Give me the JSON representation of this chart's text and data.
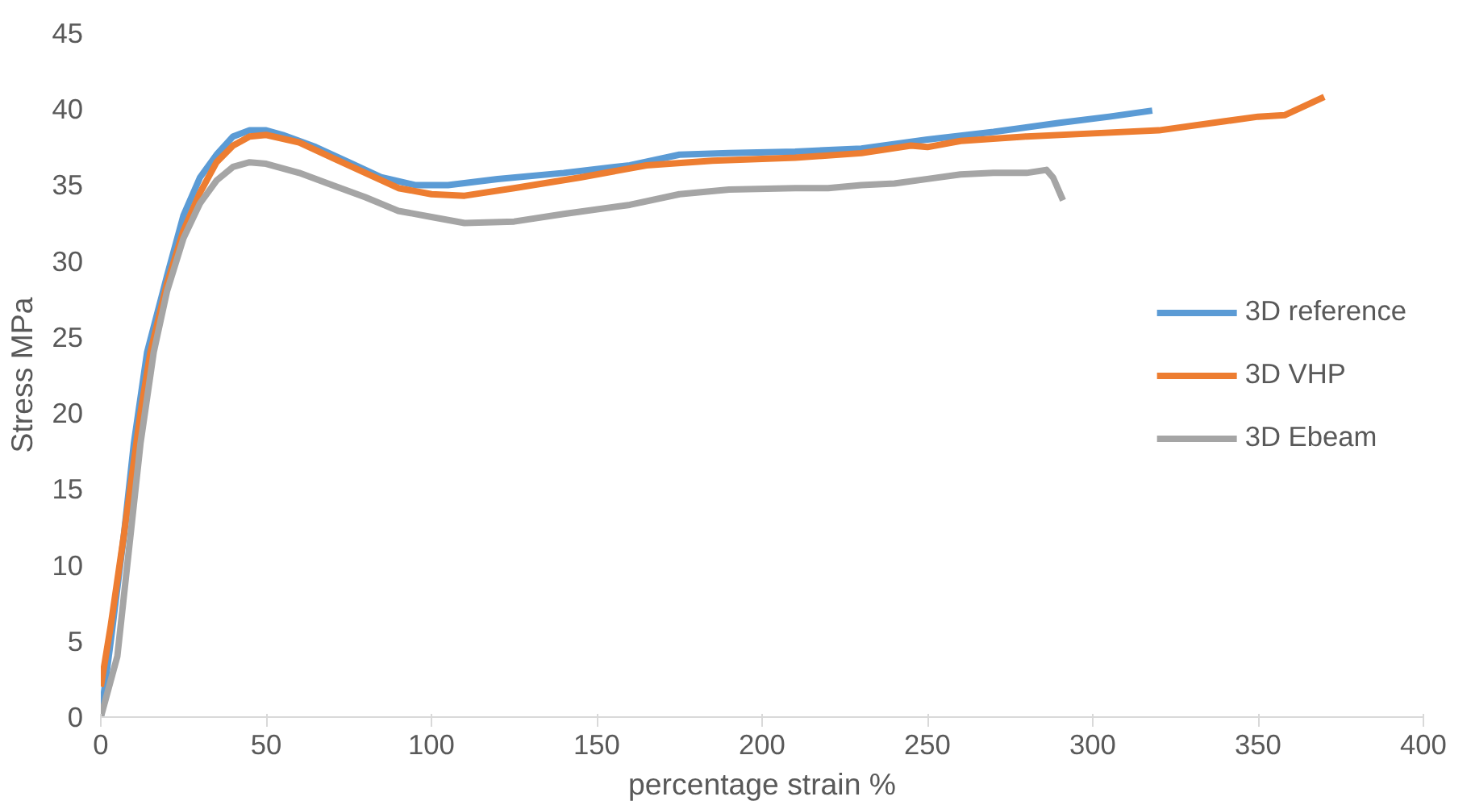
{
  "chart_data": {
    "type": "line",
    "xlabel": "percentage strain %",
    "ylabel": "Stress MPa",
    "xlim": [
      0,
      400
    ],
    "xticks": [
      0,
      50,
      100,
      150,
      200,
      250,
      300,
      350,
      400
    ],
    "ylim": [
      0,
      45
    ],
    "yticks": [
      0,
      5,
      10,
      15,
      20,
      25,
      30,
      35,
      40,
      45
    ],
    "grid": false,
    "legend": "right",
    "line_style": "solid",
    "series": [
      {
        "name": "3D reference",
        "color": "#5b9bd5",
        "x": [
          0,
          3,
          7,
          10,
          14,
          20,
          25,
          30,
          35,
          40,
          45,
          50,
          55,
          65,
          75,
          85,
          95,
          105,
          120,
          140,
          160,
          175,
          190,
          210,
          230,
          250,
          270,
          290,
          305,
          318
        ],
        "values": [
          0,
          5,
          12,
          18,
          24,
          29,
          33,
          35.5,
          37,
          38.2,
          38.6,
          38.6,
          38.3,
          37.5,
          36.5,
          35.5,
          35,
          35,
          35.4,
          35.8,
          36.3,
          37,
          37.1,
          37.2,
          37.4,
          38,
          38.5,
          39.1,
          39.5,
          39.9
        ]
      },
      {
        "name": "3D VHP",
        "color": "#ed7d31",
        "x": [
          0,
          3,
          7,
          12,
          15,
          20,
          25,
          30,
          35,
          40,
          45,
          50,
          60,
          70,
          80,
          90,
          100,
          110,
          125,
          145,
          165,
          185,
          210,
          230,
          245,
          250,
          260,
          280,
          300,
          320,
          340,
          350,
          358,
          365,
          370
        ],
        "values": [
          2,
          6,
          12,
          20,
          24,
          28.5,
          32,
          34.5,
          36.5,
          37.6,
          38.2,
          38.3,
          37.8,
          36.8,
          35.8,
          34.8,
          34.4,
          34.3,
          34.8,
          35.5,
          36.3,
          36.6,
          36.8,
          37.1,
          37.6,
          37.5,
          37.9,
          38.2,
          38.4,
          38.6,
          39.2,
          39.5,
          39.6,
          40.3,
          40.8
        ]
      },
      {
        "name": "3D Ebeam",
        "color": "#a5a5a5",
        "x": [
          0,
          5,
          8,
          12,
          16,
          20,
          25,
          30,
          35,
          40,
          45,
          50,
          60,
          70,
          80,
          90,
          100,
          110,
          125,
          140,
          160,
          175,
          190,
          210,
          220,
          230,
          240,
          250,
          260,
          270,
          280,
          286,
          288,
          291
        ],
        "values": [
          0,
          4,
          10,
          18,
          24,
          28,
          31.5,
          33.8,
          35.3,
          36.2,
          36.5,
          36.4,
          35.8,
          35,
          34.2,
          33.3,
          32.9,
          32.5,
          32.6,
          33.1,
          33.7,
          34.4,
          34.7,
          34.8,
          34.8,
          35,
          35.1,
          35.4,
          35.7,
          35.8,
          35.8,
          36,
          35.5,
          34
        ]
      }
    ]
  }
}
